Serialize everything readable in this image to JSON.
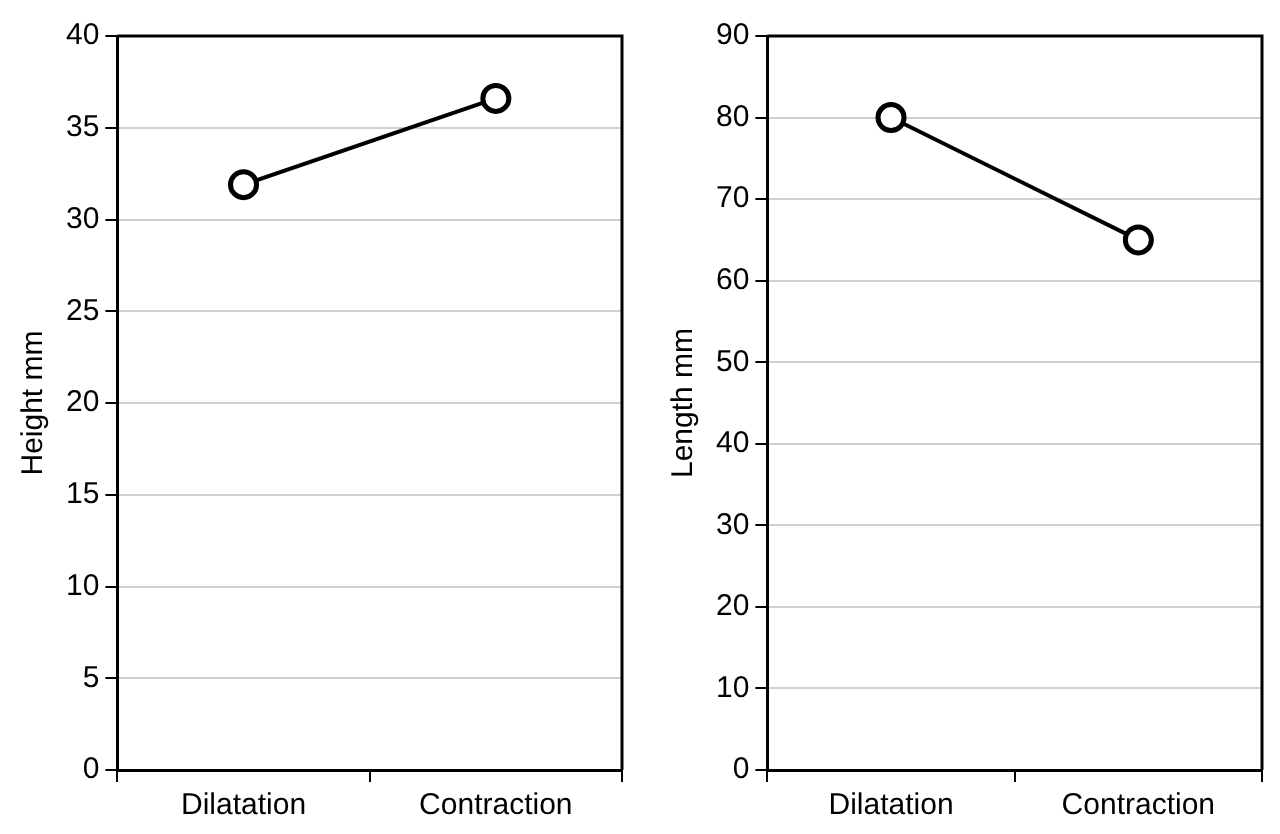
{
  "chart_data": [
    {
      "type": "line",
      "categories": [
        "Dilatation",
        "Contraction"
      ],
      "ylabel": "Height mm",
      "ylim": [
        0,
        40
      ],
      "yticks": [
        0,
        5,
        10,
        15,
        20,
        25,
        30,
        35,
        40
      ],
      "grid": "y",
      "marker": "circle",
      "line_style": "solid",
      "legend": false,
      "series": [
        {
          "color": "#000000",
          "values": [
            31.9,
            36.6
          ]
        }
      ]
    },
    {
      "type": "line",
      "categories": [
        "Dilatation",
        "Contraction"
      ],
      "ylabel": "Length mm",
      "ylim": [
        0,
        90
      ],
      "yticks": [
        0,
        10,
        20,
        30,
        40,
        50,
        60,
        70,
        80,
        90
      ],
      "grid": "y",
      "marker": "circle",
      "line_style": "solid",
      "legend": false,
      "series": [
        {
          "color": "#000000",
          "values": [
            80,
            65
          ]
        }
      ]
    }
  ]
}
